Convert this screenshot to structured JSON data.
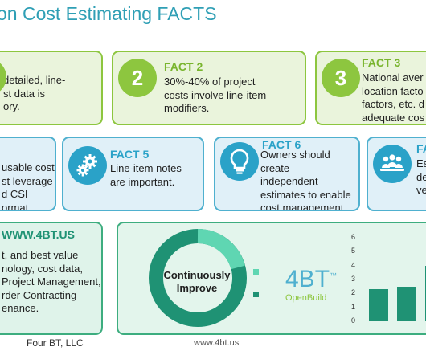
{
  "title": "on Cost Estimating FACTS",
  "row1": [
    {
      "number": "",
      "label": "",
      "lines": [
        "detailed, line-",
        "st data is",
        "ory."
      ]
    },
    {
      "number": "2",
      "label": "FACT 2",
      "lines": [
        "30%-40% of project",
        "costs involve line-item",
        "modifiers."
      ]
    },
    {
      "number": "3",
      "label": "FACT 3",
      "lines": [
        "National aver",
        "location facto",
        "factors, etc. d",
        "adequate cos"
      ]
    }
  ],
  "row2": [
    {
      "label": "",
      "lines": [
        "usable cost",
        "st leverage",
        "d CSI",
        "ormat."
      ]
    },
    {
      "label": "FACT 5",
      "icon": "gears-icon",
      "lines": [
        "Line-item notes",
        "are important."
      ]
    },
    {
      "label": "FACT 6",
      "icon": "lightbulb-icon",
      "lines": [
        "Owners should",
        "create",
        "independent",
        "estimates to enable",
        "cost management."
      ]
    },
    {
      "label": "FA",
      "icon": "people-group-icon",
      "lines": [
        "Es",
        "de",
        "ve"
      ]
    }
  ],
  "row3_left": {
    "heading": "WWW.4BT.US",
    "lines": [
      "t, and best value",
      "nology, cost data,",
      "Project Management,",
      "rder Contracting",
      "enance."
    ]
  },
  "donut_label": "Continuously Improve",
  "logo": {
    "mark": "4BT",
    "trademark": "™",
    "sub": "OpenBuild"
  },
  "chart_data": {
    "type": "bar",
    "values": [
      2.3,
      2.5,
      4
    ],
    "yticks": [
      "0",
      "1",
      "2",
      "3",
      "4",
      "5",
      "6"
    ],
    "ylim": [
      0,
      6
    ]
  },
  "footer": {
    "company": "Four BT, LLC",
    "url": "www.4bt.us"
  },
  "colors": {
    "green": "#8dc63f",
    "blue": "#2aa2c8",
    "teal": "#1f9274",
    "title": "#2f9fb5"
  }
}
